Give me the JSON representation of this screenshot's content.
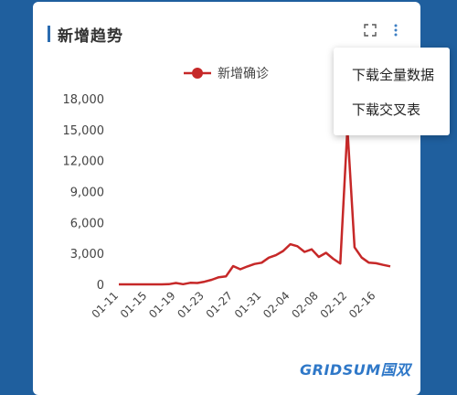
{
  "card": {
    "title": "新增趋势",
    "expand_icon": "expand-icon",
    "more_icon": "more-vert-icon"
  },
  "menu": {
    "items": [
      "下载全量数据",
      "下载交叉表"
    ]
  },
  "brand": {
    "watermark": "GRIDSUM国双"
  },
  "colors": {
    "line": "#c62828",
    "accent": "#2f78c8",
    "background": "#1f5f9e"
  },
  "chart_data": {
    "type": "line",
    "legend": "新增确诊",
    "legend_position": "top",
    "ylim": [
      0,
      18000
    ],
    "y_ticks": [
      "0",
      "3,000",
      "6,000",
      "9,000",
      "12,000",
      "15,000",
      "18,000"
    ],
    "x_ticks": [
      "01-11",
      "01-15",
      "01-19",
      "01-23",
      "01-27",
      "01-31",
      "02-04",
      "02-08",
      "02-12",
      "02-16"
    ],
    "series": [
      {
        "name": "新增确诊",
        "x": [
          "01-11",
          "01-12",
          "01-13",
          "01-14",
          "01-15",
          "01-16",
          "01-17",
          "01-18",
          "01-19",
          "01-20",
          "01-21",
          "01-22",
          "01-23",
          "01-24",
          "01-25",
          "01-26",
          "01-27",
          "01-28",
          "01-29",
          "01-30",
          "01-31",
          "02-01",
          "02-02",
          "02-03",
          "02-04",
          "02-05",
          "02-06",
          "02-07",
          "02-08",
          "02-09",
          "02-10",
          "02-11",
          "02-12",
          "02-13",
          "02-14",
          "02-15",
          "02-16",
          "02-17",
          "02-18"
        ],
        "values": [
          0,
          0,
          0,
          0,
          0,
          0,
          4,
          17,
          136,
          19,
          150,
          130,
          260,
          440,
          690,
          770,
          1770,
          1460,
          1740,
          1980,
          2100,
          2590,
          2830,
          3240,
          3890,
          3700,
          3150,
          3400,
          2660,
          3060,
          2480,
          2020,
          15150,
          3600,
          2600,
          2100,
          2050,
          1890,
          1750
        ]
      }
    ]
  }
}
